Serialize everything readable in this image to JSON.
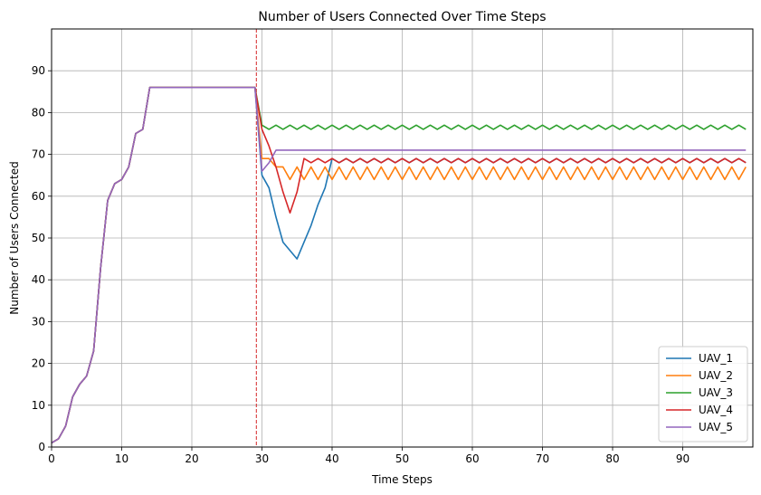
{
  "chart_data": {
    "type": "line",
    "title": "Number of Users Connected Over Time Steps",
    "xlabel": "Time Steps",
    "ylabel": "Number of Users Connected",
    "xlim": [
      0,
      100
    ],
    "ylim": [
      0,
      100
    ],
    "xticks": [
      0,
      10,
      20,
      30,
      40,
      50,
      60,
      70,
      80,
      90
    ],
    "yticks": [
      0,
      10,
      20,
      30,
      40,
      50,
      60,
      70,
      80,
      90
    ],
    "grid": true,
    "legend_position": "bottom-right",
    "vline": {
      "x": 29.2,
      "color": "#d62728",
      "style": "dashed"
    },
    "common_prefix": {
      "x": [
        0,
        1,
        2,
        3,
        4,
        5,
        6,
        7,
        8,
        9,
        10,
        11,
        12,
        13,
        14,
        15,
        16,
        17,
        18,
        19,
        20,
        21,
        22,
        23,
        24,
        25,
        26,
        27,
        28,
        29
      ],
      "values": [
        1,
        2,
        5,
        12,
        15,
        17,
        23,
        43,
        59,
        63,
        64,
        67,
        75,
        76,
        86,
        86,
        86,
        86,
        86,
        86,
        86,
        86,
        86,
        86,
        86,
        86,
        86,
        86,
        86,
        86
      ]
    },
    "series": [
      {
        "name": "UAV_1",
        "color": "#1f77b4",
        "x": [
          29,
          30,
          31,
          32,
          33,
          34,
          35,
          36,
          37,
          38,
          39,
          40,
          41,
          42,
          43,
          44,
          45,
          46,
          47,
          48,
          49,
          50,
          51,
          52,
          53,
          54,
          55,
          56,
          57,
          58,
          59,
          60,
          61,
          62,
          63,
          64,
          65,
          66,
          67,
          68,
          69,
          70,
          71,
          72,
          73,
          74,
          75,
          76,
          77,
          78,
          79,
          80,
          81,
          82,
          83,
          84,
          85,
          86,
          87,
          88,
          89,
          90,
          91,
          92,
          93,
          94,
          95,
          96,
          97,
          98,
          99
        ],
        "values": [
          86,
          65,
          62,
          55,
          49,
          47,
          45,
          49,
          53,
          58,
          62,
          69,
          68,
          69,
          68,
          69,
          68,
          69,
          68,
          69,
          68,
          69,
          68,
          69,
          68,
          69,
          68,
          69,
          68,
          69,
          68,
          69,
          68,
          69,
          68,
          69,
          68,
          69,
          68,
          69,
          68,
          69,
          68,
          69,
          68,
          69,
          68,
          69,
          68,
          69,
          68,
          69,
          68,
          69,
          68,
          69,
          68,
          69,
          68,
          69,
          68,
          69,
          68,
          69,
          68,
          69,
          68,
          69,
          68,
          69,
          68
        ]
      },
      {
        "name": "UAV_2",
        "color": "#ff7f0e",
        "x": [
          29,
          30,
          31,
          32,
          33,
          34,
          35,
          36,
          37,
          38,
          39,
          40,
          41,
          42,
          43,
          44,
          45,
          46,
          47,
          48,
          49,
          50,
          51,
          52,
          53,
          54,
          55,
          56,
          57,
          58,
          59,
          60,
          61,
          62,
          63,
          64,
          65,
          66,
          67,
          68,
          69,
          70,
          71,
          72,
          73,
          74,
          75,
          76,
          77,
          78,
          79,
          80,
          81,
          82,
          83,
          84,
          85,
          86,
          87,
          88,
          89,
          90,
          91,
          92,
          93,
          94,
          95,
          96,
          97,
          98,
          99
        ],
        "values": [
          86,
          69,
          69,
          67,
          67,
          64,
          67,
          64,
          67,
          64,
          67,
          64,
          67,
          64,
          67,
          64,
          67,
          64,
          67,
          64,
          67,
          64,
          67,
          64,
          67,
          64,
          67,
          64,
          67,
          64,
          67,
          64,
          67,
          64,
          67,
          64,
          67,
          64,
          67,
          64,
          67,
          64,
          67,
          64,
          67,
          64,
          67,
          64,
          67,
          64,
          67,
          64,
          67,
          64,
          67,
          64,
          67,
          64,
          67,
          64,
          67,
          64,
          67,
          64,
          67,
          64,
          67,
          64,
          67,
          64,
          67
        ]
      },
      {
        "name": "UAV_3",
        "color": "#2ca02c",
        "x": [
          29,
          30,
          31,
          32,
          33,
          34,
          35,
          36,
          37,
          38,
          39,
          40,
          41,
          42,
          43,
          44,
          45,
          46,
          47,
          48,
          49,
          50,
          51,
          52,
          53,
          54,
          55,
          56,
          57,
          58,
          59,
          60,
          61,
          62,
          63,
          64,
          65,
          66,
          67,
          68,
          69,
          70,
          71,
          72,
          73,
          74,
          75,
          76,
          77,
          78,
          79,
          80,
          81,
          82,
          83,
          84,
          85,
          86,
          87,
          88,
          89,
          90,
          91,
          92,
          93,
          94,
          95,
          96,
          97,
          98,
          99
        ],
        "values": [
          86,
          77,
          76,
          77,
          76,
          77,
          76,
          77,
          76,
          77,
          76,
          77,
          76,
          77,
          76,
          77,
          76,
          77,
          76,
          77,
          76,
          77,
          76,
          77,
          76,
          77,
          76,
          77,
          76,
          77,
          76,
          77,
          76,
          77,
          76,
          77,
          76,
          77,
          76,
          77,
          76,
          77,
          76,
          77,
          76,
          77,
          76,
          77,
          76,
          77,
          76,
          77,
          76,
          77,
          76,
          77,
          76,
          77,
          76,
          77,
          76,
          77,
          76,
          77,
          76,
          77,
          76,
          77,
          76,
          77,
          76
        ]
      },
      {
        "name": "UAV_4",
        "color": "#d62728",
        "x": [
          29,
          30,
          31,
          32,
          33,
          34,
          35,
          36,
          37,
          38,
          39,
          40,
          41,
          42,
          43,
          44,
          45,
          46,
          47,
          48,
          49,
          50,
          51,
          52,
          53,
          54,
          55,
          56,
          57,
          58,
          59,
          60,
          61,
          62,
          63,
          64,
          65,
          66,
          67,
          68,
          69,
          70,
          71,
          72,
          73,
          74,
          75,
          76,
          77,
          78,
          79,
          80,
          81,
          82,
          83,
          84,
          85,
          86,
          87,
          88,
          89,
          90,
          91,
          92,
          93,
          94,
          95,
          96,
          97,
          98,
          99
        ],
        "values": [
          86,
          76,
          72,
          67,
          61,
          56,
          61,
          69,
          68,
          69,
          68,
          69,
          68,
          69,
          68,
          69,
          68,
          69,
          68,
          69,
          68,
          69,
          68,
          69,
          68,
          69,
          68,
          69,
          68,
          69,
          68,
          69,
          68,
          69,
          68,
          69,
          68,
          69,
          68,
          69,
          68,
          69,
          68,
          69,
          68,
          69,
          68,
          69,
          68,
          69,
          68,
          69,
          68,
          69,
          68,
          69,
          68,
          69,
          68,
          69,
          68,
          69,
          68,
          69,
          68,
          69,
          68,
          69,
          68,
          69,
          68
        ]
      },
      {
        "name": "UAV_5",
        "color": "#9467bd",
        "x": [
          29,
          30,
          31,
          32,
          33,
          34,
          35,
          36,
          37,
          38,
          39,
          40,
          41,
          42,
          43,
          44,
          45,
          46,
          47,
          48,
          49,
          50,
          51,
          52,
          53,
          54,
          55,
          56,
          57,
          58,
          59,
          60,
          61,
          62,
          63,
          64,
          65,
          66,
          67,
          68,
          69,
          70,
          71,
          72,
          73,
          74,
          75,
          76,
          77,
          78,
          79,
          80,
          81,
          82,
          83,
          84,
          85,
          86,
          87,
          88,
          89,
          90,
          91,
          92,
          93,
          94,
          95,
          96,
          97,
          98,
          99
        ],
        "values": [
          86,
          66,
          68,
          71,
          71,
          71,
          71,
          71,
          71,
          71,
          71,
          71,
          71,
          71,
          71,
          71,
          71,
          71,
          71,
          71,
          71,
          71,
          71,
          71,
          71,
          71,
          71,
          71,
          71,
          71,
          71,
          71,
          71,
          71,
          71,
          71,
          71,
          71,
          71,
          71,
          71,
          71,
          71,
          71,
          71,
          71,
          71,
          71,
          71,
          71,
          71,
          71,
          71,
          71,
          71,
          71,
          71,
          71,
          71,
          71,
          71,
          71,
          71,
          71,
          71,
          71,
          71,
          71,
          71,
          71,
          71
        ]
      }
    ]
  }
}
